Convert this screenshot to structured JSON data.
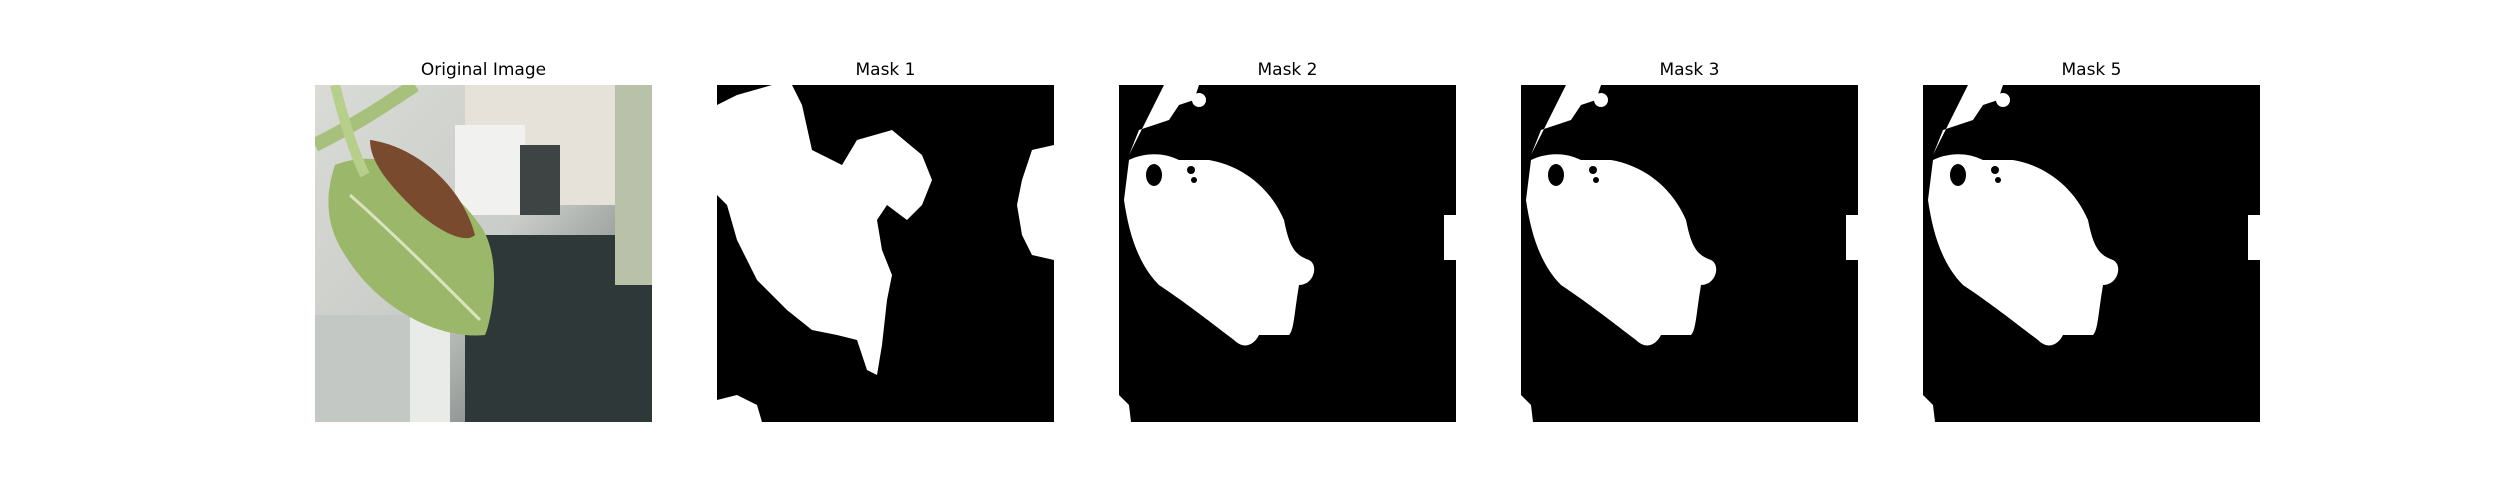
{
  "figure": {
    "background_color": "#ffffff",
    "panels": [
      {
        "title": "Original Image",
        "kind": "photo"
      },
      {
        "title": "Mask 1",
        "kind": "binary-mask"
      },
      {
        "title": "Mask 2",
        "kind": "binary-mask"
      },
      {
        "title": "Mask 3",
        "kind": "binary-mask"
      },
      {
        "title": "Mask 5",
        "kind": "binary-mask"
      }
    ]
  },
  "colors": {
    "mask_background": "#000000",
    "mask_foreground": "#ffffff",
    "leaf_green": "#8fae5a",
    "leaf_brown": "#7a4a2e"
  }
}
